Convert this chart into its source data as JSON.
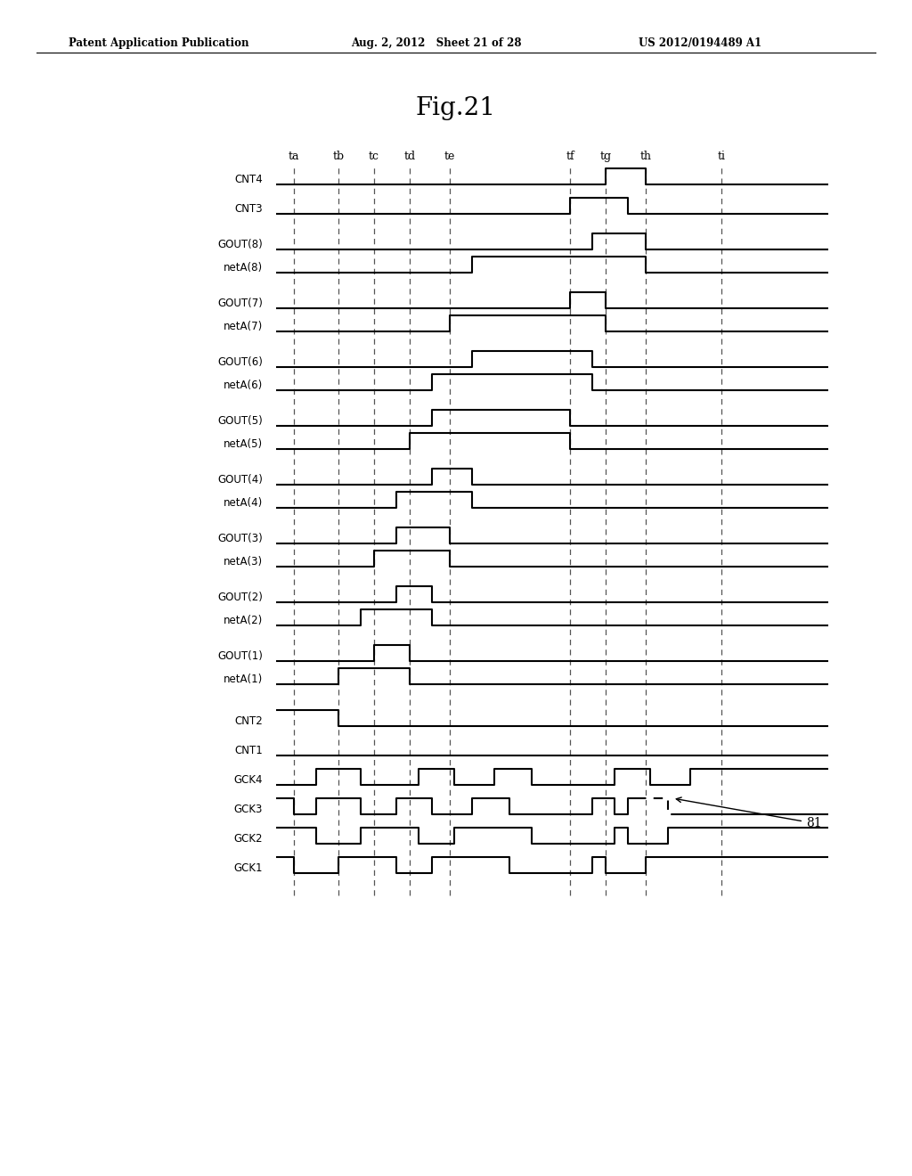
{
  "title": "Fig.21",
  "header_left": "Patent Application Publication",
  "header_mid": "Aug. 2, 2012   Sheet 21 of 28",
  "header_right": "US 2012/0194489 A1",
  "annotation_label": "81",
  "time_labels": [
    "ta",
    "tb",
    "tc",
    "td",
    "te",
    "tf",
    "tg",
    "th",
    "ti"
  ],
  "signal_labels": [
    "GCK1",
    "GCK2",
    "GCK3",
    "GCK4",
    "CNT1",
    "CNT2",
    "netA(1)",
    "GOUT(1)",
    "netA(2)",
    "GOUT(2)",
    "netA(3)",
    "GOUT(3)",
    "netA(4)",
    "GOUT(4)",
    "netA(5)",
    "GOUT(5)",
    "netA(6)",
    "GOUT(6)",
    "netA(7)",
    "GOUT(7)",
    "netA(8)",
    "GOUT(8)",
    "CNT3",
    "CNT4"
  ],
  "background_color": "#ffffff"
}
